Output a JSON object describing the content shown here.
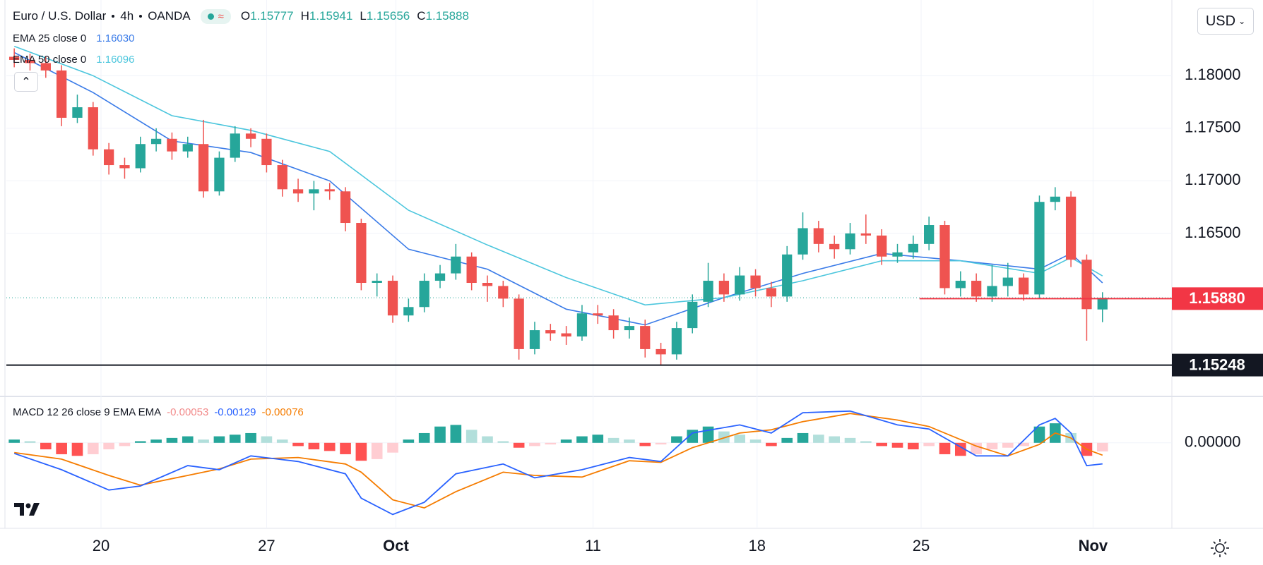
{
  "chart_data": {
    "type": "candlestick",
    "title": "Euro / U.S. Dollar",
    "interval": "4h",
    "exchange": "OANDA",
    "ohlc_legend": [
      {
        "label": "O",
        "value": "1.15777"
      },
      {
        "label": "H",
        "value": "1.15941"
      },
      {
        "label": "L",
        "value": "1.15656"
      },
      {
        "label": "C",
        "value": "1.15888"
      }
    ],
    "currency": "USD",
    "up_color": "#26a69a",
    "down_color": "#ef5350",
    "open": [
      1.1818,
      1.1815,
      1.1812,
      1.1805,
      1.176,
      1.177,
      1.173,
      1.1715,
      1.1712,
      1.1735,
      1.174,
      1.1728,
      1.1735,
      1.169,
      1.1722,
      1.1745,
      1.174,
      1.1715,
      1.1692,
      1.1688,
      1.1692,
      1.169,
      1.166,
      1.1603,
      1.1605,
      1.1572,
      1.158,
      1.1605,
      1.1612,
      1.1628,
      1.1603,
      1.16,
      1.1588,
      1.154,
      1.1558,
      1.1555,
      1.1552,
      1.1574,
      1.1572,
      1.1558,
      1.1562,
      1.154,
      1.1535,
      1.156,
      1.1585,
      1.1605,
      1.1592,
      1.161,
      1.1598,
      1.159,
      1.163,
      1.1655,
      1.164,
      1.1635,
      1.165,
      1.1648,
      1.1628,
      1.1632,
      1.164,
      1.1658,
      1.1598,
      1.1605,
      1.159,
      1.16,
      1.1608,
      1.1592,
      1.168,
      1.1685,
      1.1625,
      1.15777
    ],
    "high": [
      1.1826,
      1.1821,
      1.1818,
      1.181,
      1.1782,
      1.1775,
      1.1736,
      1.1722,
      1.1742,
      1.175,
      1.1746,
      1.1742,
      1.1758,
      1.1728,
      1.1752,
      1.175,
      1.1745,
      1.172,
      1.1702,
      1.17,
      1.1698,
      1.1694,
      1.1664,
      1.1612,
      1.161,
      1.1588,
      1.1612,
      1.162,
      1.164,
      1.1632,
      1.161,
      1.1605,
      1.1592,
      1.1566,
      1.1564,
      1.1562,
      1.1582,
      1.1582,
      1.1578,
      1.157,
      1.1568,
      1.1546,
      1.1566,
      1.1592,
      1.1622,
      1.1612,
      1.1618,
      1.1616,
      1.1604,
      1.1638,
      1.167,
      1.1662,
      1.1648,
      1.166,
      1.1668,
      1.1654,
      1.164,
      1.1648,
      1.1666,
      1.1662,
      1.1614,
      1.1612,
      1.162,
      1.1622,
      1.1612,
      1.1686,
      1.1694,
      1.169,
      1.163,
      1.15941
    ],
    "low": [
      1.1808,
      1.1805,
      1.1798,
      1.1752,
      1.1755,
      1.1724,
      1.1706,
      1.1702,
      1.1708,
      1.1728,
      1.172,
      1.1722,
      1.1684,
      1.1686,
      1.1718,
      1.1732,
      1.1708,
      1.1685,
      1.168,
      1.1672,
      1.1682,
      1.1652,
      1.1596,
      1.159,
      1.1565,
      1.1566,
      1.1575,
      1.1598,
      1.1606,
      1.1596,
      1.1585,
      1.158,
      1.153,
      1.1535,
      1.1548,
      1.1544,
      1.1548,
      1.1564,
      1.155,
      1.155,
      1.1532,
      1.1525,
      1.153,
      1.1555,
      1.158,
      1.1585,
      1.1586,
      1.159,
      1.158,
      1.1585,
      1.1625,
      1.1632,
      1.1626,
      1.163,
      1.164,
      1.162,
      1.1622,
      1.1626,
      1.1634,
      1.1592,
      1.159,
      1.1585,
      1.1585,
      1.159,
      1.1586,
      1.1588,
      1.1672,
      1.1618,
      1.1548,
      1.15656
    ],
    "close": [
      1.1815,
      1.1812,
      1.1805,
      1.176,
      1.177,
      1.173,
      1.1715,
      1.1712,
      1.1735,
      1.174,
      1.1728,
      1.1735,
      1.169,
      1.1722,
      1.1745,
      1.174,
      1.1715,
      1.1692,
      1.1688,
      1.1692,
      1.169,
      1.166,
      1.1603,
      1.1605,
      1.1572,
      1.158,
      1.1605,
      1.1612,
      1.1628,
      1.1603,
      1.16,
      1.1588,
      1.154,
      1.1558,
      1.1555,
      1.1552,
      1.1574,
      1.1572,
      1.1558,
      1.1562,
      1.154,
      1.1535,
      1.156,
      1.1585,
      1.1605,
      1.1592,
      1.161,
      1.1598,
      1.159,
      1.163,
      1.1655,
      1.164,
      1.1635,
      1.165,
      1.1648,
      1.1628,
      1.1632,
      1.164,
      1.1658,
      1.1598,
      1.1605,
      1.159,
      1.16,
      1.1608,
      1.1592,
      1.168,
      1.1685,
      1.1625,
      1.1578,
      1.15888
    ],
    "xlim": [
      -0.5,
      73.4
    ],
    "xticks": [
      {
        "value": 5.5,
        "label": "20"
      },
      {
        "value": 16,
        "label": "27"
      },
      {
        "value": 24.2,
        "label": "Oct"
      },
      {
        "value": 36.7,
        "label": "11"
      },
      {
        "value": 47.1,
        "label": "18"
      },
      {
        "value": 57.5,
        "label": "25"
      },
      {
        "value": 68.4,
        "label": "Nov"
      }
    ],
    "ylim": [
      1.1495,
      1.1872
    ],
    "yticks": [
      {
        "value": 1.18,
        "label": "1.18000"
      },
      {
        "value": 1.175,
        "label": "1.17500"
      },
      {
        "value": 1.17,
        "label": "1.17000"
      },
      {
        "value": 1.165,
        "label": "1.16500"
      }
    ],
    "grid": true,
    "overlays": [
      {
        "name": "EMA 25 close 0",
        "legend_value": "1.16030",
        "color": "#3a7be8",
        "x": [
          0,
          5,
          10,
          15,
          20,
          25,
          30,
          35,
          40,
          45,
          50,
          55,
          60,
          65,
          67,
          69
        ],
        "values": [
          1.1822,
          1.1784,
          1.1738,
          1.1727,
          1.17,
          1.1635,
          1.1616,
          1.1578,
          1.1563,
          1.1589,
          1.1612,
          1.1631,
          1.1624,
          1.1616,
          1.1631,
          1.1603
        ]
      },
      {
        "name": "EMA 50 close 0",
        "legend_value": "1.16096",
        "color": "#4cc6dd",
        "x": [
          0,
          5,
          10,
          15,
          20,
          25,
          30,
          35,
          40,
          45,
          50,
          55,
          60,
          65,
          67,
          69
        ],
        "values": [
          1.1828,
          1.18,
          1.1762,
          1.1748,
          1.1728,
          1.1672,
          1.1639,
          1.1608,
          1.1582,
          1.1589,
          1.1605,
          1.1624,
          1.1624,
          1.1612,
          1.1627,
          1.16096
        ]
      }
    ],
    "levels": [
      {
        "value": 1.1588,
        "from": 57.4,
        "color": "#f23645",
        "label": "1.15880"
      },
      {
        "value": 1.15248,
        "color": "#131722",
        "label": "1.15248"
      }
    ],
    "macd": {
      "name": "MACD 12 26 close 9 EMA EMA",
      "legend_values": [
        "-0.00053",
        "-0.00129",
        "-0.00076"
      ],
      "legend_colors": [
        "#f28b8b",
        "#2962ff",
        "#f57c00"
      ],
      "hist_colors": [
        "#26a69a",
        "#b2dfdb",
        "#ff5252",
        "#ffcdd2"
      ],
      "histogram": [
        0.0002,
        0.0001,
        -0.0004,
        -0.0007,
        -0.0008,
        -0.0007,
        -0.0004,
        -0.0002,
        0.0001,
        0.0002,
        0.0003,
        0.0004,
        0.0002,
        0.0004,
        0.0005,
        0.0006,
        0.0004,
        0.0002,
        -0.0002,
        -0.0004,
        -0.0005,
        -0.0007,
        -0.0011,
        -0.001,
        -0.0006,
        0.0002,
        0.0006,
        0.001,
        0.0011,
        0.0008,
        0.0004,
        0.0001,
        -0.0003,
        -0.0002,
        -0.0001,
        0.0002,
        0.0004,
        0.0005,
        0.0003,
        0.0002,
        -0.0002,
        -0.0001,
        0.0004,
        0.0008,
        0.001,
        0.0007,
        0.0005,
        0.0002,
        -0.0002,
        0.0003,
        0.0006,
        0.0005,
        0.0004,
        0.0003,
        0.0001,
        -0.0002,
        -0.0003,
        -0.0004,
        -0.0002,
        -0.0007,
        -0.0008,
        -0.0007,
        -0.0004,
        -0.0003,
        -0.0002,
        0.001,
        0.0012,
        0.0006,
        -0.0008,
        -0.00053
      ],
      "x": [
        0,
        3,
        6,
        8,
        11,
        13,
        15,
        18,
        21,
        22,
        24,
        26,
        28,
        31,
        33,
        36,
        39,
        41,
        43,
        46,
        48,
        50,
        53,
        56,
        58,
        61,
        63,
        65,
        66,
        67,
        68,
        69
      ],
      "macd": [
        -0.00065,
        -0.00165,
        -0.0029,
        -0.00265,
        -0.0014,
        -0.00165,
        -0.0008,
        -0.00115,
        -0.0019,
        -0.0034,
        -0.0044,
        -0.00365,
        -0.0019,
        -0.0013,
        -0.00215,
        -0.00165,
        -0.0009,
        -0.00115,
        0.0006,
        0.0011,
        0.0006,
        0.00185,
        0.00195,
        0.0011,
        0.00085,
        -0.0008,
        -0.0008,
        0.0011,
        0.0015,
        0.0006,
        -0.0014,
        -0.00129
      ],
      "signal": [
        -0.0006,
        -0.001,
        -0.002,
        -0.0026,
        -0.002,
        -0.0016,
        -0.001,
        -0.0009,
        -0.0013,
        -0.0018,
        -0.0035,
        -0.004,
        -0.003,
        -0.0018,
        -0.002,
        -0.0021,
        -0.0011,
        -0.0012,
        -0.0003,
        0.0006,
        0.0008,
        0.0013,
        0.0018,
        0.0014,
        0.001,
        -0.0002,
        -0.0008,
        -0.0001,
        0.0006,
        0.0003,
        -0.0004,
        -0.00076
      ],
      "macd_color": "#2962ff",
      "signal_color": "#f57c00",
      "y2lim": [
        -0.00525,
        0.00285
      ],
      "y2ticks": [
        {
          "value": 0,
          "label": "0.00000"
        }
      ]
    }
  }
}
